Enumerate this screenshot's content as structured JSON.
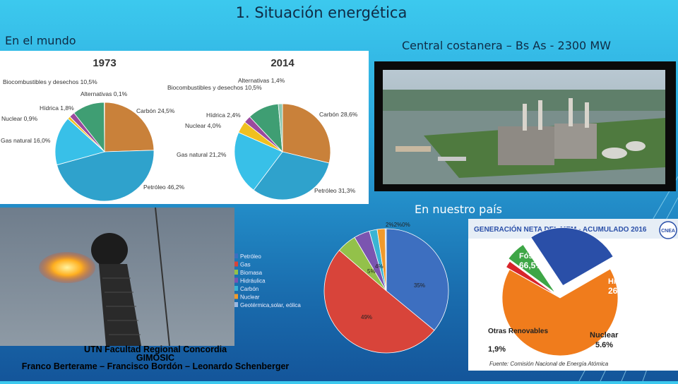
{
  "slide": {
    "title": "1.  Situación energética",
    "world_label": "En el mundo",
    "plant_label": "Central costanera – Bs As - 2300 MW",
    "country_label": "En nuestro país"
  },
  "world_charts": [
    {
      "year": "1973",
      "slices": [
        {
          "label": "Petróleo 46,2%",
          "value": 46.2,
          "color": "#2fa2cc"
        },
        {
          "label": "Gas natural 16,0%",
          "value": 16.0,
          "color": "#38c0e8"
        },
        {
          "label": "Nuclear 0,9%",
          "value": 0.9,
          "color": "#f0c020"
        },
        {
          "label": "Hídrica 1,8%",
          "value": 1.8,
          "color": "#9a4a9e"
        },
        {
          "label": "Biocombustibles y desechos 10,5%",
          "value": 10.5,
          "color": "#3f9e73"
        },
        {
          "label": "Alternativas 0,1%",
          "value": 0.1,
          "color": "#8dc8b0"
        },
        {
          "label": "Carbón 24,5%",
          "value": 24.5,
          "color": "#c9813a"
        }
      ]
    },
    {
      "year": "2014",
      "slices": [
        {
          "label": "Petróleo 31,3%",
          "value": 31.3,
          "color": "#2fa2cc"
        },
        {
          "label": "Gas natural 21,2%",
          "value": 21.2,
          "color": "#38c0e8"
        },
        {
          "label": "Nuclear 4,0%",
          "value": 4.0,
          "color": "#f0c020"
        },
        {
          "label": "Hídrica 2,4%",
          "value": 2.4,
          "color": "#9a4a9e"
        },
        {
          "label": "Biocombustibles y desechos 10,5%",
          "value": 10.5,
          "color": "#3f9e73"
        },
        {
          "label": "Alternativas 1,4%",
          "value": 1.4,
          "color": "#8dc8b0"
        },
        {
          "label": "Carbón 28,6%",
          "value": 28.6,
          "color": "#c9813a"
        }
      ]
    }
  ],
  "country_pie": {
    "legend": [
      "Petróleo",
      "Gas",
      "Biomasa",
      "Hidráulica",
      "Carbón",
      "Nuclear",
      "Geotérmica,solar, eólica"
    ],
    "colors": [
      "#3d6fc0",
      "#d8443a",
      "#93c14a",
      "#7b55b0",
      "#3ab4d4",
      "#f09a2c",
      "#9ab8e0"
    ],
    "labels": [
      "35%",
      "49%",
      "5%",
      "4%",
      "2%",
      "2%",
      "0%"
    ],
    "top_label": "2%2%0%",
    "values": [
      35,
      49,
      5,
      4,
      2,
      2,
      0.3
    ]
  },
  "mem_chart": {
    "title": "GENERACIÓN NETA DEL MEM - ACUMULADO 2016",
    "logo_text": "CNEA",
    "slices": [
      {
        "name": "Fósil",
        "pct": "66,5%",
        "value": 66.5,
        "color": "#f07c1c"
      },
      {
        "name": "Hidráulica",
        "pct": "26,0%",
        "value": 26.0,
        "color": "#2a4fa8"
      },
      {
        "name": "Nuclear",
        "pct": "5.6%",
        "value": 5.6,
        "color": "#3ea646"
      },
      {
        "name": "Otras Renovables",
        "pct": "1,9%",
        "value": 1.9,
        "color": "#d8242a"
      }
    ],
    "source": "Fuente: Comisión Nacional de Energía Atómica"
  },
  "credits": {
    "line1": "UTN Facultad Regional Concordia",
    "line2": "GIMOSIC",
    "line3": "Franco Berterame – Francisco Bordón – Leonardo Schenberger"
  }
}
